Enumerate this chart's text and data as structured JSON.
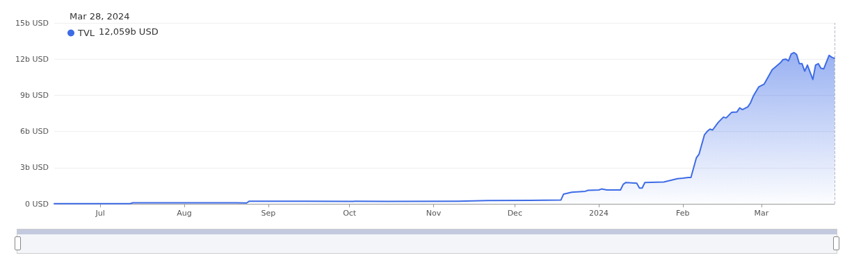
{
  "chart_data": {
    "type": "area",
    "annotations": [
      "Mar 28, 2024",
      "12,059b USD"
    ],
    "x": [
      "2023-06-14",
      "2023-07-12",
      "2023-07-13",
      "2023-08-20",
      "2023-08-24",
      "2023-08-25",
      "2023-09-15",
      "2023-10-15",
      "2023-11-10",
      "2023-11-21",
      "2023-12-18",
      "2023-12-19",
      "2023-12-22",
      "2023-12-27",
      "2023-12-28",
      "2024-01-01",
      "2024-01-02",
      "2024-01-04",
      "2024-01-09",
      "2024-01-10",
      "2024-01-11",
      "2024-01-15",
      "2024-01-16",
      "2024-01-17",
      "2024-01-18",
      "2024-01-25",
      "2024-01-30",
      "2024-02-01",
      "2024-02-03",
      "2024-02-04",
      "2024-02-06",
      "2024-02-07",
      "2024-02-09",
      "2024-02-10",
      "2024-02-11",
      "2024-02-12",
      "2024-02-14",
      "2024-02-16",
      "2024-02-17",
      "2024-02-19",
      "2024-02-21",
      "2024-02-22",
      "2024-02-23",
      "2024-02-25",
      "2024-02-26",
      "2024-02-27",
      "2024-02-29",
      "2024-03-02",
      "2024-03-03",
      "2024-03-05",
      "2024-03-06",
      "2024-03-08",
      "2024-03-09",
      "2024-03-10",
      "2024-03-11",
      "2024-03-12",
      "2024-03-13",
      "2024-03-14",
      "2024-03-15",
      "2024-03-16",
      "2024-03-17",
      "2024-03-18",
      "2024-03-20",
      "2024-03-21",
      "2024-03-22",
      "2024-03-23",
      "2024-03-24",
      "2024-03-26",
      "2024-03-27",
      "2024-03-28"
    ],
    "series": [
      {
        "name": "TVL",
        "color": "#3d6be6",
        "values": [
          0.02,
          0.02,
          0.09,
          0.09,
          0.07,
          0.22,
          0.22,
          0.2,
          0.22,
          0.27,
          0.31,
          0.81,
          0.96,
          1.04,
          1.12,
          1.15,
          1.23,
          1.15,
          1.15,
          1.62,
          1.77,
          1.71,
          1.31,
          1.31,
          1.77,
          1.81,
          2.08,
          2.12,
          2.19,
          2.19,
          3.81,
          4.12,
          5.73,
          6.0,
          6.19,
          6.12,
          6.73,
          7.19,
          7.12,
          7.58,
          7.62,
          7.96,
          7.81,
          8.04,
          8.38,
          8.92,
          9.69,
          9.92,
          10.31,
          11.12,
          11.31,
          11.69,
          11.96,
          12.0,
          11.85,
          12.42,
          12.54,
          12.38,
          11.62,
          11.62,
          11.0,
          11.5,
          10.31,
          11.5,
          11.62,
          11.23,
          11.19,
          12.31,
          12.15,
          12.059
        ]
      }
    ],
    "xlim": [
      "2023-06-14",
      "2024-03-28"
    ],
    "xticks": [
      {
        "value": "2023-07-01",
        "label": "Jul"
      },
      {
        "value": "2023-08-01",
        "label": "Aug"
      },
      {
        "value": "2023-09-01",
        "label": "Sep"
      },
      {
        "value": "2023-10-01",
        "label": "Oct"
      },
      {
        "value": "2023-11-01",
        "label": "Nov"
      },
      {
        "value": "2023-12-01",
        "label": "Dec"
      },
      {
        "value": "2024-01-01",
        "label": "2024"
      },
      {
        "value": "2024-02-01",
        "label": "Feb"
      },
      {
        "value": "2024-03-01",
        "label": "Mar"
      }
    ],
    "ylim": [
      0,
      15
    ],
    "yticks": [
      {
        "value": 0,
        "label": "0 USD"
      },
      {
        "value": 3,
        "label": "3b USD"
      },
      {
        "value": 6,
        "label": "6b USD"
      },
      {
        "value": 9,
        "label": "9b USD"
      },
      {
        "value": 12,
        "label": "12b USD"
      },
      {
        "value": 15,
        "label": "15b USD"
      }
    ],
    "ref_lines": [
      {
        "axis": "x",
        "value": "2024-03-28",
        "color": "#b4b9c8",
        "line_style": "dashed"
      }
    ],
    "grid": "y",
    "legend": "top left",
    "marker": "none",
    "line_style": "solid"
  }
}
